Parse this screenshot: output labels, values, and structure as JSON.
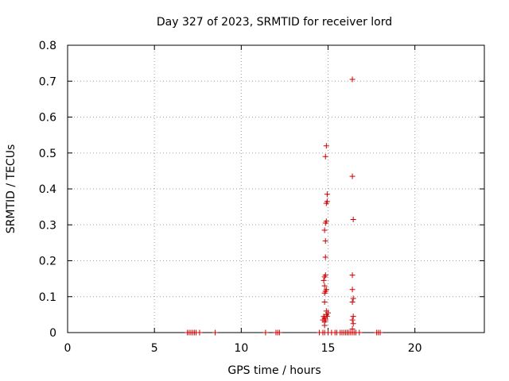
{
  "chart_data": {
    "type": "scatter",
    "title": "Day 327 of 2023, SRMTID for receiver lord",
    "xlabel": "GPS time / hours",
    "ylabel": "SRMTID / TECUs",
    "xlim": [
      0,
      24
    ],
    "ylim": [
      0,
      0.8
    ],
    "xticks": [
      "0",
      "5",
      "10",
      "15",
      "20"
    ],
    "yticks": [
      "0",
      "0.1",
      "0.2",
      "0.3",
      "0.4",
      "0.5",
      "0.6",
      "0.7",
      "0.8"
    ],
    "grid": true,
    "marker": "+",
    "color": "#cc0000",
    "points": [
      [
        6.9,
        0
      ],
      [
        7.0,
        0
      ],
      [
        7.1,
        0
      ],
      [
        7.2,
        0
      ],
      [
        7.3,
        0
      ],
      [
        7.4,
        0
      ],
      [
        7.6,
        0
      ],
      [
        8.5,
        0
      ],
      [
        11.4,
        0
      ],
      [
        12.0,
        0
      ],
      [
        12.1,
        0
      ],
      [
        12.2,
        0
      ],
      [
        14.5,
        0
      ],
      [
        14.7,
        0
      ],
      [
        14.8,
        0
      ],
      [
        15.0,
        0
      ],
      [
        15.2,
        0
      ],
      [
        15.4,
        0
      ],
      [
        15.5,
        0
      ],
      [
        15.7,
        0
      ],
      [
        15.8,
        0
      ],
      [
        15.9,
        0
      ],
      [
        16.0,
        0
      ],
      [
        16.1,
        0
      ],
      [
        16.2,
        0
      ],
      [
        16.3,
        0
      ],
      [
        16.4,
        0
      ],
      [
        16.5,
        0
      ],
      [
        16.6,
        0
      ],
      [
        16.8,
        0
      ],
      [
        17.8,
        0
      ],
      [
        17.9,
        0
      ],
      [
        18.0,
        0
      ],
      [
        14.8,
        0.02
      ],
      [
        14.8,
        0.03
      ],
      [
        14.8,
        0.04
      ],
      [
        14.9,
        0.05
      ],
      [
        14.7,
        0.035
      ],
      [
        14.75,
        0.045
      ],
      [
        14.8,
        0.085
      ],
      [
        14.8,
        0.11
      ],
      [
        14.85,
        0.115
      ],
      [
        14.9,
        0.12
      ],
      [
        14.8,
        0.13
      ],
      [
        14.75,
        0.145
      ],
      [
        14.8,
        0.155
      ],
      [
        14.85,
        0.16
      ],
      [
        14.85,
        0.21
      ],
      [
        14.85,
        0.255
      ],
      [
        14.8,
        0.285
      ],
      [
        14.85,
        0.305
      ],
      [
        14.9,
        0.31
      ],
      [
        14.9,
        0.36
      ],
      [
        14.95,
        0.365
      ],
      [
        14.95,
        0.385
      ],
      [
        14.85,
        0.49
      ],
      [
        14.9,
        0.52
      ],
      [
        14.9,
        0.06
      ],
      [
        15.0,
        0.055
      ],
      [
        14.95,
        0.045
      ],
      [
        14.85,
        0.035
      ],
      [
        16.4,
        0.01
      ],
      [
        16.45,
        0.025
      ],
      [
        16.4,
        0.035
      ],
      [
        16.45,
        0.045
      ],
      [
        16.4,
        0.085
      ],
      [
        16.45,
        0.095
      ],
      [
        16.4,
        0.12
      ],
      [
        16.4,
        0.16
      ],
      [
        16.45,
        0.315
      ],
      [
        16.4,
        0.435
      ],
      [
        16.4,
        0.705
      ]
    ]
  }
}
